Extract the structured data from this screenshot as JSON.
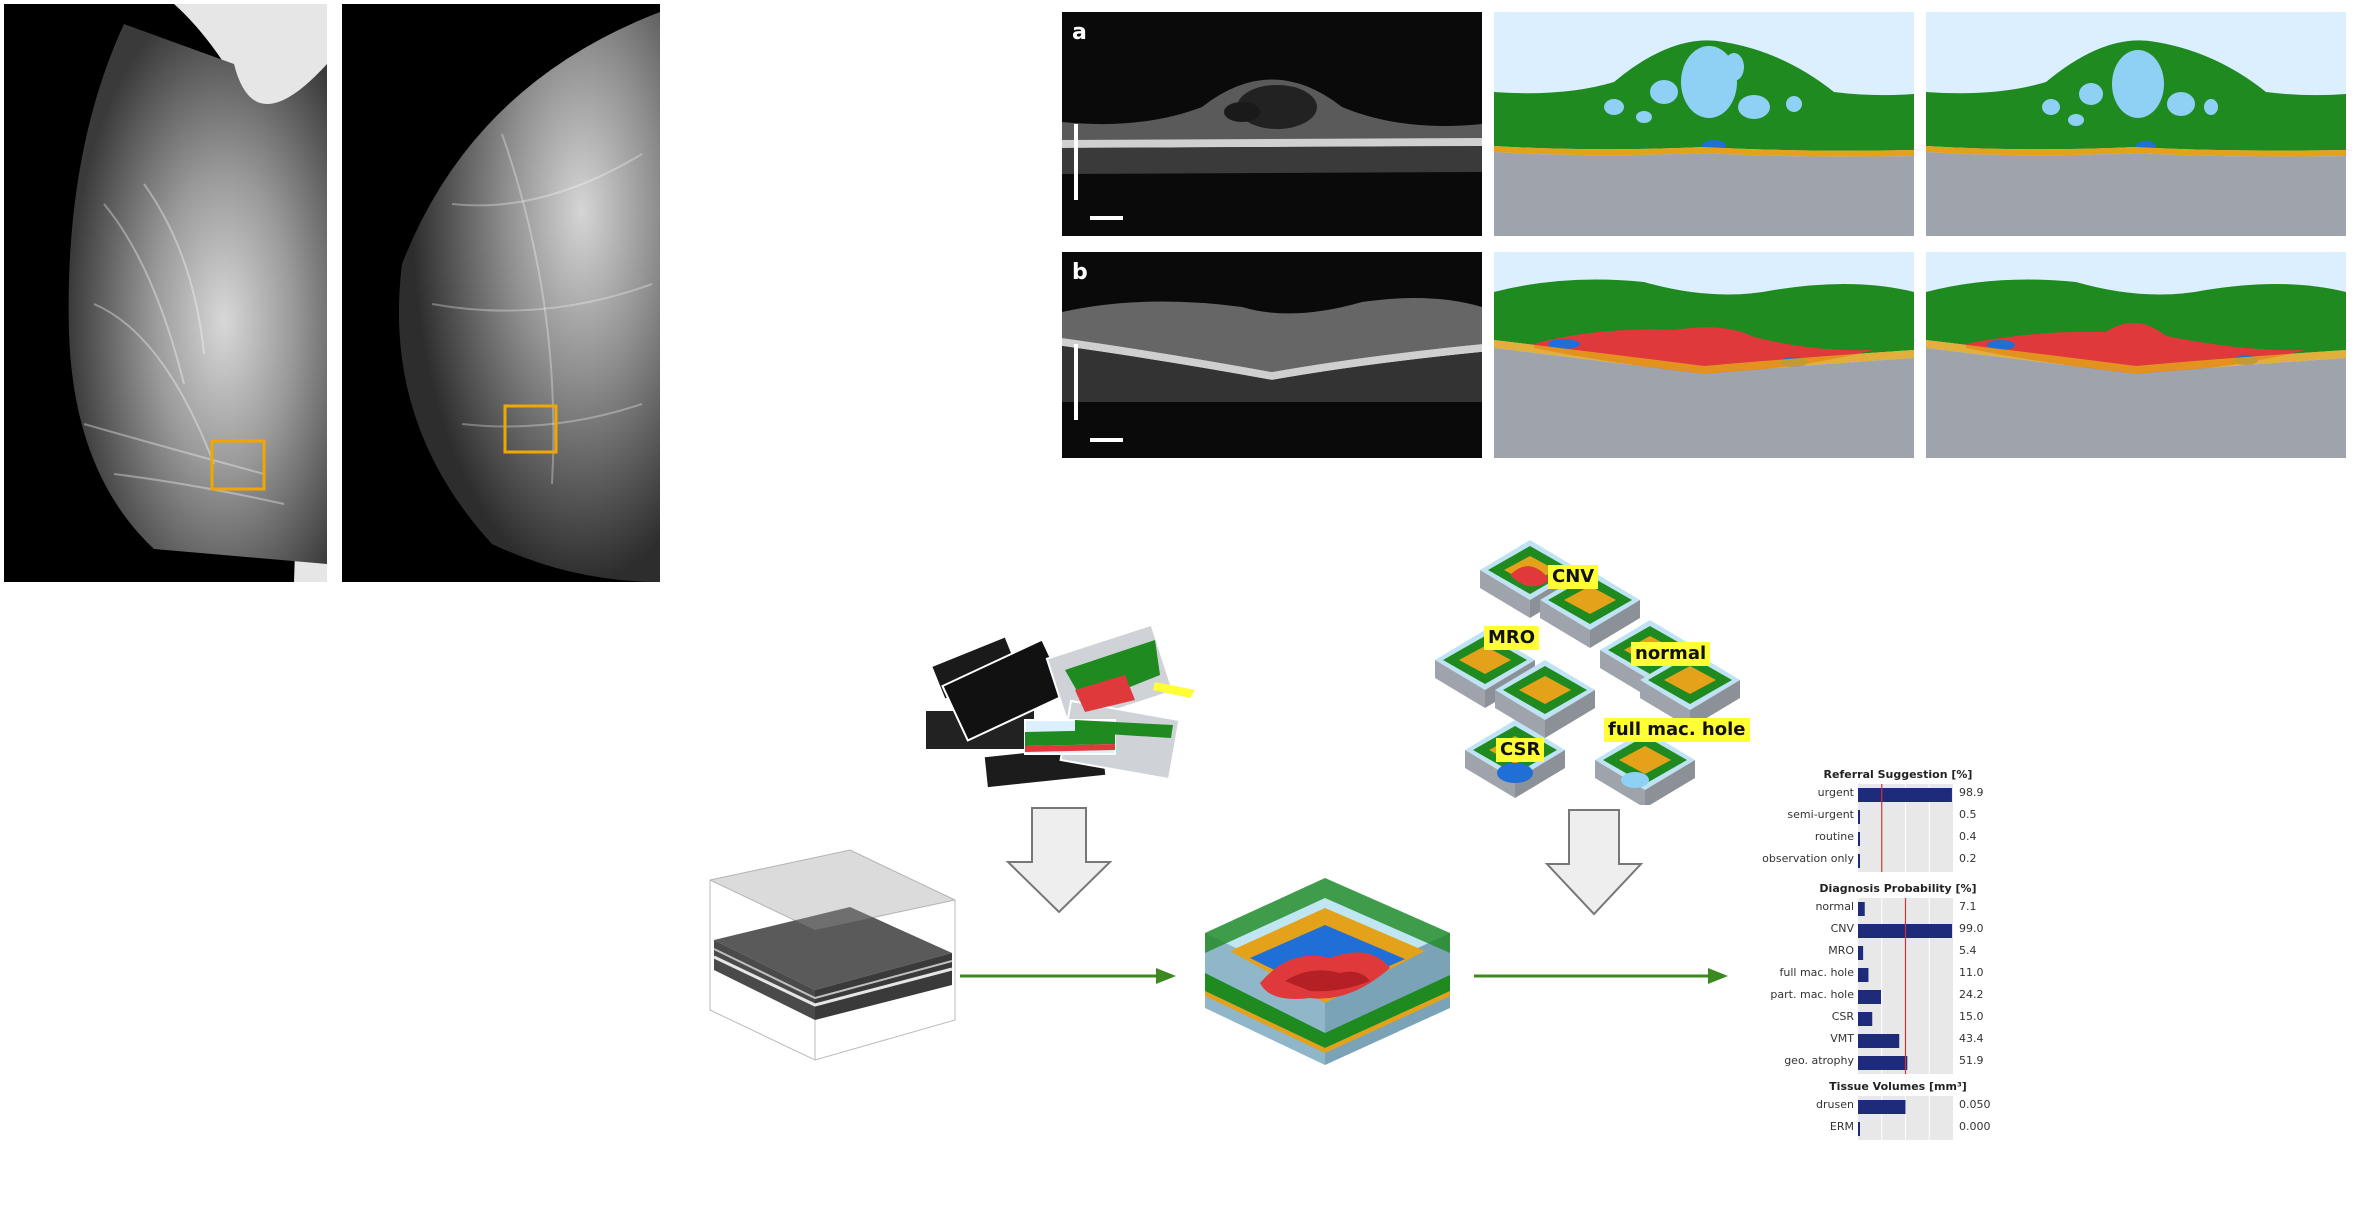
{
  "panels": {
    "a_label": "a",
    "b_label": "b"
  },
  "tags": {
    "cnv": "CNV",
    "mro": "MRO",
    "normal": "normal",
    "csr": "CSR",
    "full_mac_hole": "full mac. hole"
  },
  "report": {
    "referral_title": "Referral Suggestion [%]",
    "referral": [
      {
        "label": "urgent",
        "value": "98.9",
        "fraction": 0.989
      },
      {
        "label": "semi-urgent",
        "value": "0.5",
        "fraction": 0.005
      },
      {
        "label": "routine",
        "value": "0.4",
        "fraction": 0.004
      },
      {
        "label": "observation only",
        "value": "0.2",
        "fraction": 0.002
      }
    ],
    "diagnosis_title": "Diagnosis Probability [%]",
    "diagnosis": [
      {
        "label": "normal",
        "value": "7.1",
        "fraction": 0.071
      },
      {
        "label": "CNV",
        "value": "99.0",
        "fraction": 0.99
      },
      {
        "label": "MRO",
        "value": "5.4",
        "fraction": 0.054
      },
      {
        "label": "full mac. hole",
        "value": "11.0",
        "fraction": 0.11
      },
      {
        "label": "part. mac. hole",
        "value": "24.2",
        "fraction": 0.242
      },
      {
        "label": "CSR",
        "value": "15.0",
        "fraction": 0.15
      },
      {
        "label": "VMT",
        "value": "43.4",
        "fraction": 0.434
      },
      {
        "label": "geo. atrophy",
        "value": "51.9",
        "fraction": 0.519
      }
    ],
    "volumes_title": "Tissue Volumes [mm³]",
    "volumes": [
      {
        "label": "drusen",
        "value": "0.050",
        "fraction": 0.5
      },
      {
        "label": "ERM",
        "value": "0.000",
        "fraction": 0.0
      }
    ]
  },
  "colors": {
    "vitreous": "#dcefff",
    "retina_green": "#1f8a1f",
    "fluid_lightblue": "#8fd0f5",
    "fluid_blue": "#1f6fd6",
    "rpe_orange": "#e3a21a",
    "choroid_gray": "#9fa3ab",
    "cnv_red": "#e0393c",
    "highlight_box": "#f0a800",
    "arrow_green": "#3c8a1f",
    "bar_navy": "#1e2a7a",
    "threshold_red": "#d33333"
  }
}
